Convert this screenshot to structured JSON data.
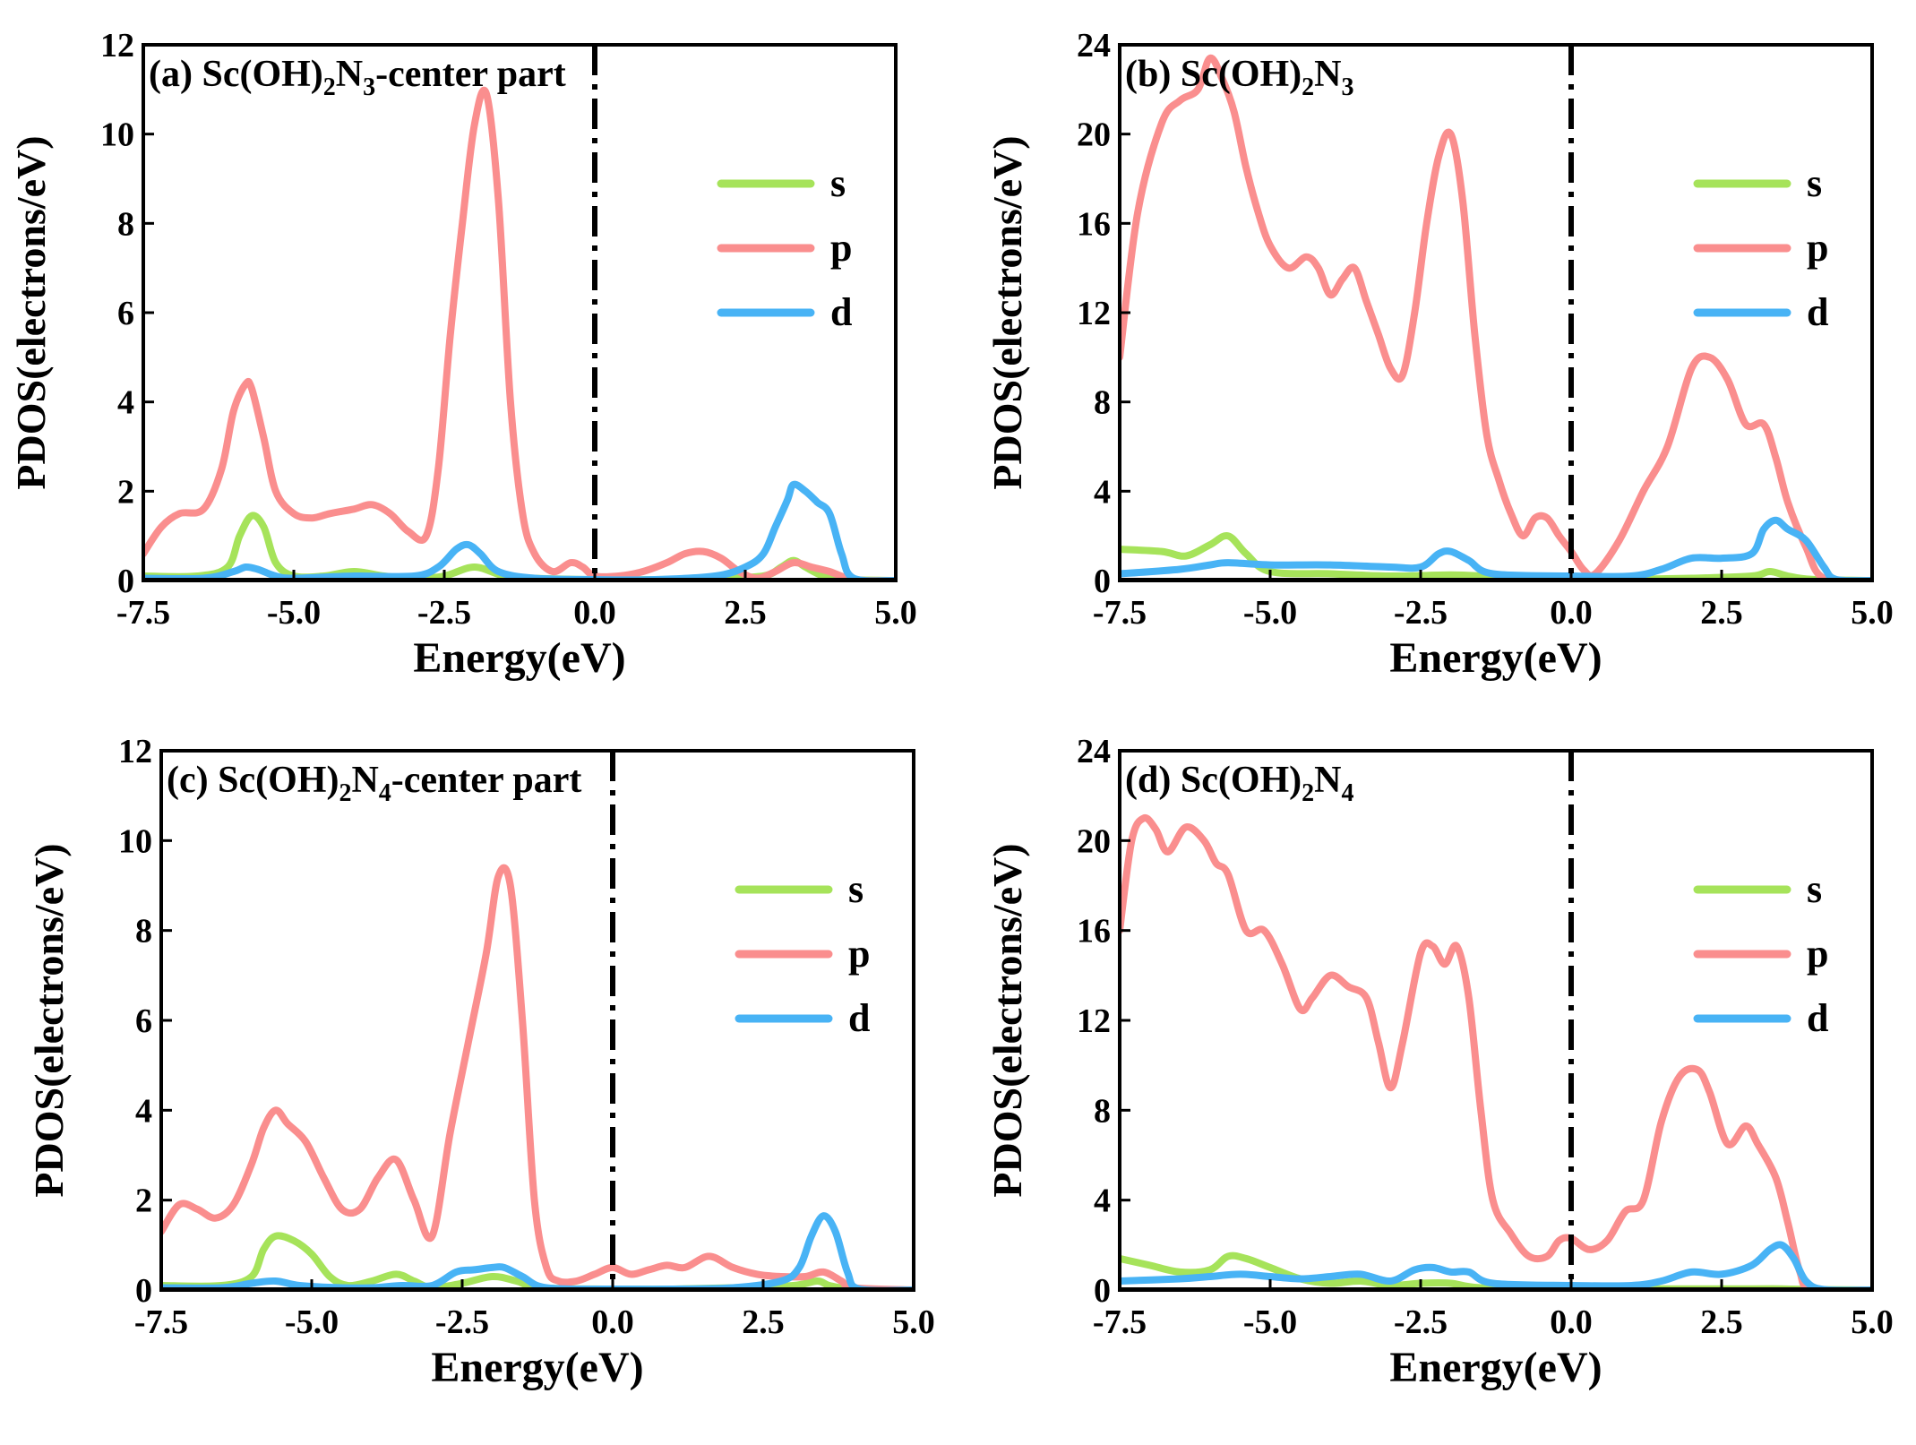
{
  "colors": {
    "s": "#a6e35a",
    "p": "#fa8e8e",
    "d": "#48b3f5",
    "axis": "#000000",
    "fermi": "#000000"
  },
  "chart_data": [
    {
      "type": "line",
      "panel": "a",
      "title_parts": [
        "(a) Sc(OH)",
        "2",
        "N",
        "3",
        "-center part"
      ],
      "xlabel": "Energy(eV)",
      "ylabel": "PDOS(electrons/eV)",
      "xlim": [
        -7.5,
        5.0
      ],
      "ylim": [
        0,
        12
      ],
      "xticks": [
        -7.5,
        -5.0,
        -2.5,
        0.0,
        2.5,
        5.0
      ],
      "xtick_labels": [
        "-7.5",
        "-5.0",
        "-2.5",
        "0.0",
        "2.5",
        "5.0"
      ],
      "yticks": [
        0,
        2,
        4,
        6,
        8,
        10,
        12
      ],
      "ytick_labels": [
        "0",
        "2",
        "4",
        "6",
        "8",
        "10",
        "12"
      ],
      "fermi_level": 0.0,
      "legend": {
        "placement": "top-right",
        "entries": [
          "s",
          "p",
          "d"
        ]
      },
      "series": [
        {
          "name": "s",
          "x": [
            -7.5,
            -6.6,
            -6.1,
            -5.9,
            -5.7,
            -5.5,
            -5.3,
            -5.0,
            -4.5,
            -4.0,
            -3.5,
            -3.0,
            -2.5,
            -2.0,
            -1.5,
            -1.0,
            0.0,
            1.0,
            2.0,
            2.8,
            3.1,
            3.3,
            3.5,
            3.8,
            4.2,
            5.0
          ],
          "y": [
            0.1,
            0.1,
            0.3,
            1.0,
            1.45,
            1.2,
            0.4,
            0.1,
            0.1,
            0.2,
            0.1,
            0.05,
            0.1,
            0.3,
            0.1,
            0.05,
            0.02,
            0.02,
            0.05,
            0.1,
            0.3,
            0.45,
            0.3,
            0.1,
            0.02,
            0.0
          ]
        },
        {
          "name": "p",
          "x": [
            -7.5,
            -7.2,
            -6.9,
            -6.5,
            -6.2,
            -6.0,
            -5.8,
            -5.7,
            -5.5,
            -5.3,
            -5.0,
            -4.7,
            -4.4,
            -4.0,
            -3.7,
            -3.4,
            -3.1,
            -2.8,
            -2.6,
            -2.4,
            -2.2,
            -2.0,
            -1.8,
            -1.6,
            -1.4,
            -1.2,
            -1.0,
            -0.7,
            -0.4,
            -0.2,
            0.0,
            0.4,
            0.8,
            1.2,
            1.5,
            1.8,
            2.1,
            2.4,
            2.7,
            3.0,
            3.3,
            3.6,
            3.9,
            4.2,
            4.5,
            5.0
          ],
          "y": [
            0.6,
            1.2,
            1.5,
            1.6,
            2.5,
            3.8,
            4.4,
            4.3,
            3.2,
            2.0,
            1.5,
            1.4,
            1.5,
            1.6,
            1.7,
            1.5,
            1.1,
            1.0,
            2.5,
            5.5,
            8.0,
            10.2,
            10.9,
            8.5,
            4.0,
            1.5,
            0.6,
            0.2,
            0.4,
            0.3,
            0.1,
            0.1,
            0.2,
            0.4,
            0.6,
            0.65,
            0.5,
            0.2,
            0.05,
            0.2,
            0.4,
            0.3,
            0.2,
            0.05,
            0.0,
            0.0
          ]
        },
        {
          "name": "d",
          "x": [
            -7.5,
            -6.5,
            -6.0,
            -5.8,
            -5.6,
            -5.3,
            -5.0,
            -4.0,
            -3.0,
            -2.6,
            -2.3,
            -2.1,
            -1.9,
            -1.6,
            -1.0,
            0.0,
            1.0,
            2.0,
            2.5,
            2.8,
            3.0,
            3.2,
            3.3,
            3.5,
            3.7,
            3.9,
            4.1,
            4.3,
            5.0
          ],
          "y": [
            0.05,
            0.05,
            0.2,
            0.3,
            0.25,
            0.1,
            0.05,
            0.1,
            0.1,
            0.3,
            0.7,
            0.8,
            0.6,
            0.2,
            0.05,
            0.02,
            0.02,
            0.1,
            0.3,
            0.6,
            1.2,
            1.8,
            2.15,
            2.0,
            1.75,
            1.5,
            0.6,
            0.05,
            0.0
          ]
        }
      ]
    },
    {
      "type": "line",
      "panel": "b",
      "title_parts": [
        "(b) Sc(OH)",
        "2",
        "N",
        "3",
        ""
      ],
      "xlabel": "Energy(eV)",
      "ylabel": "PDOS(electrons/eV)",
      "xlim": [
        -7.5,
        5.0
      ],
      "ylim": [
        0,
        24
      ],
      "xticks": [
        -7.5,
        -5.0,
        -2.5,
        0.0,
        2.5,
        5.0
      ],
      "xtick_labels": [
        "-7.5",
        "-5.0",
        "-2.5",
        "0.0",
        "2.5",
        "5.0"
      ],
      "yticks": [
        0,
        4,
        8,
        12,
        16,
        20,
        24
      ],
      "ytick_labels": [
        "0",
        "4",
        "8",
        "12",
        "16",
        "20",
        "24"
      ],
      "fermi_level": 0.0,
      "legend": {
        "placement": "top-right",
        "entries": [
          "s",
          "p",
          "d"
        ]
      },
      "series": [
        {
          "name": "s",
          "x": [
            -7.5,
            -6.8,
            -6.4,
            -6.0,
            -5.7,
            -5.4,
            -5.0,
            -4.0,
            -3.0,
            -2.0,
            -1.5,
            -1.0,
            0.0,
            1.0,
            2.0,
            3.0,
            3.3,
            3.6,
            4.0,
            5.0
          ],
          "y": [
            1.4,
            1.3,
            1.1,
            1.6,
            2.0,
            1.2,
            0.4,
            0.3,
            0.2,
            0.25,
            0.2,
            0.1,
            0.05,
            0.05,
            0.1,
            0.2,
            0.4,
            0.2,
            0.05,
            0.0
          ]
        },
        {
          "name": "s0",
          "hidden_name": true,
          "x": [
            -7.5,
            -5.0,
            -2.5,
            0.0,
            2.5,
            5.0
          ],
          "y": [
            0,
            0,
            0,
            0,
            0,
            0
          ]
        },
        {
          "name": "p",
          "x": [
            -7.5,
            -7.2,
            -6.8,
            -6.5,
            -6.2,
            -6.0,
            -5.8,
            -5.6,
            -5.4,
            -5.2,
            -5.0,
            -4.7,
            -4.4,
            -4.2,
            -4.0,
            -3.8,
            -3.6,
            -3.4,
            -3.2,
            -3.0,
            -2.8,
            -2.6,
            -2.4,
            -2.2,
            -2.0,
            -1.8,
            -1.6,
            -1.4,
            -1.2,
            -1.0,
            -0.8,
            -0.6,
            -0.4,
            -0.2,
            0.0,
            0.2,
            0.4,
            0.8,
            1.2,
            1.6,
            2.0,
            2.3,
            2.6,
            2.9,
            3.2,
            3.4,
            3.6,
            3.9,
            4.2,
            5.0
          ],
          "y": [
            10.0,
            16.5,
            20.5,
            21.5,
            22.0,
            23.4,
            22.5,
            21.0,
            18.5,
            16.5,
            15.0,
            14.0,
            14.5,
            14.0,
            12.8,
            13.5,
            14.0,
            12.5,
            11.0,
            9.5,
            9.2,
            12.0,
            16.0,
            19.0,
            20.0,
            17.0,
            11.0,
            6.5,
            4.5,
            3.0,
            2.0,
            2.8,
            2.8,
            2.0,
            1.3,
            0.5,
            0.3,
            1.8,
            4.0,
            6.0,
            9.5,
            10.0,
            9.0,
            7.0,
            7.0,
            5.5,
            3.5,
            1.5,
            0.1,
            0.0
          ]
        },
        {
          "name": "d",
          "x": [
            -7.5,
            -6.5,
            -6.0,
            -5.7,
            -5.0,
            -4.0,
            -3.0,
            -2.5,
            -2.2,
            -2.0,
            -1.7,
            -1.3,
            0.0,
            1.0,
            1.5,
            2.0,
            2.5,
            3.0,
            3.2,
            3.4,
            3.6,
            3.9,
            4.2,
            4.4,
            5.0
          ],
          "y": [
            0.3,
            0.5,
            0.7,
            0.8,
            0.7,
            0.7,
            0.6,
            0.6,
            1.2,
            1.3,
            0.9,
            0.3,
            0.2,
            0.2,
            0.5,
            1.0,
            1.0,
            1.2,
            2.3,
            2.7,
            2.3,
            1.8,
            0.6,
            0.05,
            0.0
          ]
        }
      ]
    },
    {
      "type": "line",
      "panel": "c",
      "title_parts": [
        "(c) Sc(OH)",
        "2",
        "N",
        "4",
        "-center part"
      ],
      "xlabel": "Energy(eV)",
      "ylabel": "PDOS(electrons/eV)",
      "xlim": [
        -7.5,
        5.0
      ],
      "ylim": [
        0,
        12
      ],
      "xticks": [
        -7.5,
        -5.0,
        -2.5,
        0.0,
        2.5,
        5.0
      ],
      "xtick_labels": [
        "-7.5",
        "-5.0",
        "-2.5",
        "0.0",
        "2.5",
        "5.0"
      ],
      "yticks": [
        0,
        2,
        4,
        6,
        8,
        10,
        12
      ],
      "ytick_labels": [
        "0",
        "2",
        "4",
        "6",
        "8",
        "10",
        "12"
      ],
      "fermi_level": 0.0,
      "legend": {
        "placement": "top-right",
        "entries": [
          "s",
          "p",
          "d"
        ]
      },
      "series": [
        {
          "name": "s",
          "x": [
            -7.5,
            -6.5,
            -6.0,
            -5.8,
            -5.6,
            -5.3,
            -5.0,
            -4.7,
            -4.4,
            -4.0,
            -3.6,
            -3.3,
            -3.0,
            -2.5,
            -2.0,
            -1.6,
            -1.2,
            0.0,
            1.0,
            2.0,
            3.0,
            3.4,
            3.6,
            4.0,
            5.0
          ],
          "y": [
            0.1,
            0.1,
            0.3,
            0.9,
            1.2,
            1.1,
            0.8,
            0.3,
            0.1,
            0.2,
            0.35,
            0.2,
            0.05,
            0.15,
            0.3,
            0.2,
            0.05,
            0.02,
            0.02,
            0.05,
            0.1,
            0.2,
            0.1,
            0.02,
            0.0
          ]
        },
        {
          "name": "p",
          "x": [
            -7.5,
            -7.2,
            -6.9,
            -6.6,
            -6.3,
            -6.0,
            -5.8,
            -5.6,
            -5.4,
            -5.1,
            -4.8,
            -4.5,
            -4.2,
            -3.9,
            -3.6,
            -3.3,
            -3.0,
            -2.7,
            -2.4,
            -2.1,
            -1.9,
            -1.7,
            -1.5,
            -1.3,
            -1.1,
            -0.9,
            -0.6,
            -0.3,
            0.0,
            0.3,
            0.6,
            0.9,
            1.2,
            1.6,
            2.0,
            2.4,
            2.8,
            3.2,
            3.5,
            3.8,
            4.0,
            5.0
          ],
          "y": [
            1.3,
            1.9,
            1.8,
            1.6,
            1.9,
            2.8,
            3.6,
            4.0,
            3.7,
            3.3,
            2.5,
            1.8,
            1.8,
            2.5,
            2.9,
            2.0,
            1.2,
            3.5,
            5.5,
            7.5,
            9.2,
            9.0,
            6.0,
            2.0,
            0.5,
            0.2,
            0.2,
            0.35,
            0.5,
            0.35,
            0.45,
            0.55,
            0.5,
            0.75,
            0.5,
            0.35,
            0.3,
            0.3,
            0.4,
            0.2,
            0.05,
            0.0
          ]
        },
        {
          "name": "d",
          "x": [
            -7.5,
            -6.5,
            -6.0,
            -5.6,
            -5.2,
            -4.5,
            -4.0,
            -3.5,
            -3.0,
            -2.6,
            -2.3,
            -2.0,
            -1.8,
            -1.5,
            -1.1,
            0.0,
            1.0,
            2.0,
            2.8,
            3.1,
            3.3,
            3.5,
            3.7,
            3.9,
            4.1,
            5.0
          ],
          "y": [
            0.05,
            0.05,
            0.15,
            0.2,
            0.1,
            0.05,
            0.05,
            0.1,
            0.1,
            0.4,
            0.45,
            0.5,
            0.5,
            0.3,
            0.05,
            0.02,
            0.02,
            0.05,
            0.2,
            0.5,
            1.2,
            1.65,
            1.3,
            0.4,
            0.02,
            0.0
          ]
        }
      ]
    },
    {
      "type": "line",
      "panel": "d",
      "title_parts": [
        "(d) Sc(OH)",
        "2",
        "N",
        "4",
        ""
      ],
      "xlabel": "Energy(eV)",
      "ylabel": "PDOS(electrons/eV)",
      "xlim": [
        -7.5,
        5.0
      ],
      "ylim": [
        0,
        24
      ],
      "xticks": [
        -7.5,
        -5.0,
        -2.5,
        0.0,
        2.5,
        5.0
      ],
      "xtick_labels": [
        "-7.5",
        "-5.0",
        "-2.5",
        "0.0",
        "2.5",
        "5.0"
      ],
      "yticks": [
        0,
        4,
        8,
        12,
        16,
        20,
        24
      ],
      "ytick_labels": [
        "0",
        "4",
        "8",
        "12",
        "16",
        "20",
        "24"
      ],
      "fermi_level": 0.0,
      "legend": {
        "placement": "top-right",
        "entries": [
          "s",
          "p",
          "d"
        ]
      },
      "series": [
        {
          "name": "s",
          "x": [
            -7.5,
            -7.0,
            -6.5,
            -6.0,
            -5.7,
            -5.4,
            -5.0,
            -4.5,
            -4.0,
            -3.5,
            -3.0,
            -2.5,
            -2.0,
            -1.5,
            0.0,
            1.0,
            2.0,
            3.0,
            3.5,
            4.0,
            5.0
          ],
          "y": [
            1.4,
            1.1,
            0.8,
            0.9,
            1.5,
            1.4,
            1.0,
            0.5,
            0.3,
            0.4,
            0.2,
            0.3,
            0.3,
            0.1,
            0.05,
            0.05,
            0.05,
            0.05,
            0.05,
            0.02,
            0.0
          ]
        },
        {
          "name": "p",
          "x": [
            -7.5,
            -7.3,
            -7.1,
            -6.9,
            -6.7,
            -6.4,
            -6.1,
            -5.9,
            -5.7,
            -5.4,
            -5.1,
            -4.8,
            -4.5,
            -4.3,
            -4.0,
            -3.7,
            -3.4,
            -3.2,
            -3.0,
            -2.8,
            -2.5,
            -2.3,
            -2.1,
            -1.9,
            -1.7,
            -1.5,
            -1.3,
            -1.0,
            -0.7,
            -0.4,
            -0.2,
            0.0,
            0.3,
            0.6,
            0.9,
            1.2,
            1.5,
            1.8,
            2.1,
            2.3,
            2.6,
            2.9,
            3.1,
            3.4,
            3.6,
            3.8,
            4.0,
            5.0
          ],
          "y": [
            16.0,
            20.0,
            21.0,
            20.5,
            19.5,
            20.6,
            20.0,
            19.0,
            18.5,
            16.0,
            16.0,
            14.5,
            12.5,
            13.0,
            14.0,
            13.5,
            13.0,
            11.0,
            9.0,
            11.0,
            15.0,
            15.3,
            14.5,
            15.3,
            13.0,
            8.0,
            4.0,
            2.5,
            1.5,
            1.5,
            2.2,
            2.3,
            1.8,
            2.2,
            3.5,
            4.0,
            7.5,
            9.5,
            9.8,
            8.8,
            6.5,
            7.3,
            6.5,
            5.0,
            3.0,
            0.8,
            0.05,
            0.0
          ]
        },
        {
          "name": "d",
          "x": [
            -7.5,
            -6.5,
            -6.0,
            -5.5,
            -5.0,
            -4.5,
            -4.0,
            -3.5,
            -3.0,
            -2.6,
            -2.3,
            -2.0,
            -1.7,
            -1.3,
            0.0,
            1.0,
            1.5,
            2.0,
            2.5,
            3.0,
            3.3,
            3.5,
            3.7,
            3.9,
            4.2,
            5.0
          ],
          "y": [
            0.4,
            0.5,
            0.6,
            0.7,
            0.6,
            0.5,
            0.6,
            0.7,
            0.4,
            0.9,
            1.0,
            0.8,
            0.8,
            0.3,
            0.2,
            0.2,
            0.4,
            0.8,
            0.7,
            1.1,
            1.8,
            2.0,
            1.4,
            0.4,
            0.02,
            0.0
          ]
        }
      ]
    }
  ]
}
